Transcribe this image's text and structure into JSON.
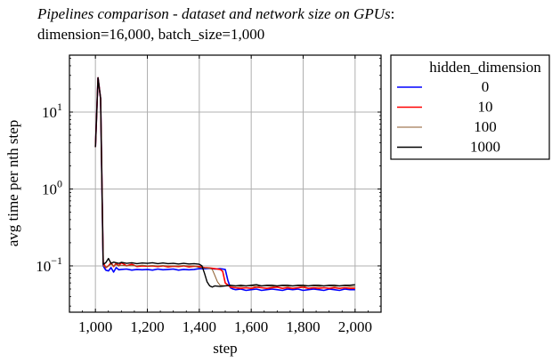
{
  "chart_data": {
    "type": "line",
    "title_italic": "Pipelines comparison - dataset and network size on GPUs",
    "title_colon": ":",
    "subtitle": "dimension=16,000, batch_size=1,000",
    "xlabel": "step",
    "ylabel": "avg time per nth step",
    "xlim": [
      900,
      2100
    ],
    "ylim": [
      0.025,
      55
    ],
    "yscale": "log",
    "grid": true,
    "x_ticks": [
      1000,
      1200,
      1400,
      1600,
      1800,
      2000
    ],
    "x_tick_labels": [
      "1,000",
      "1,200",
      "1,400",
      "1,600",
      "1,800",
      "2,000"
    ],
    "y_ticks": [
      0.1,
      1,
      10
    ],
    "y_tick_base": "10",
    "y_tick_exponents": [
      "−1",
      "0",
      "1"
    ],
    "legend": {
      "title": "hidden_dimension",
      "placement": "outside-top-right",
      "entries": [
        "0",
        "10",
        "100",
        "1000"
      ]
    },
    "series": [
      {
        "name": "0",
        "color": "#0000ff",
        "x": [
          1000,
          1010,
          1020,
          1030,
          1040,
          1050,
          1060,
          1070,
          1080,
          1090,
          1100,
          1120,
          1140,
          1160,
          1180,
          1200,
          1220,
          1240,
          1260,
          1280,
          1300,
          1320,
          1340,
          1360,
          1380,
          1400,
          1420,
          1440,
          1460,
          1480,
          1500,
          1510,
          1520,
          1530,
          1540,
          1560,
          1580,
          1600,
          1620,
          1640,
          1660,
          1680,
          1700,
          1720,
          1740,
          1760,
          1780,
          1800,
          1820,
          1840,
          1860,
          1880,
          1900,
          1920,
          1940,
          1960,
          1980,
          2000
        ],
        "y": [
          3.5,
          28,
          15,
          0.1,
          0.088,
          0.086,
          0.095,
          0.083,
          0.095,
          0.089,
          0.09,
          0.091,
          0.088,
          0.09,
          0.089,
          0.09,
          0.088,
          0.091,
          0.089,
          0.09,
          0.091,
          0.088,
          0.09,
          0.089,
          0.09,
          0.092,
          0.092,
          0.093,
          0.091,
          0.092,
          0.09,
          0.065,
          0.052,
          0.05,
          0.049,
          0.05,
          0.048,
          0.049,
          0.05,
          0.048,
          0.049,
          0.05,
          0.049,
          0.048,
          0.05,
          0.049,
          0.05,
          0.048,
          0.049,
          0.05,
          0.049,
          0.048,
          0.05,
          0.049,
          0.048,
          0.05,
          0.049,
          0.049
        ]
      },
      {
        "name": "10",
        "color": "#ff0000",
        "x": [
          1000,
          1010,
          1020,
          1030,
          1040,
          1050,
          1060,
          1070,
          1080,
          1090,
          1100,
          1120,
          1140,
          1160,
          1180,
          1200,
          1220,
          1240,
          1260,
          1280,
          1300,
          1320,
          1340,
          1360,
          1380,
          1400,
          1420,
          1440,
          1460,
          1480,
          1490,
          1500,
          1520,
          1540,
          1560,
          1580,
          1600,
          1620,
          1640,
          1660,
          1680,
          1700,
          1720,
          1740,
          1760,
          1780,
          1800,
          1820,
          1840,
          1860,
          1880,
          1900,
          1920,
          1940,
          1960,
          1980,
          2000
        ],
        "y": [
          3.5,
          28,
          15,
          0.11,
          0.095,
          0.1,
          0.11,
          0.098,
          0.108,
          0.1,
          0.11,
          0.1,
          0.105,
          0.098,
          0.1,
          0.099,
          0.1,
          0.098,
          0.1,
          0.097,
          0.099,
          0.098,
          0.1,
          0.097,
          0.099,
          0.098,
          0.095,
          0.094,
          0.092,
          0.09,
          0.085,
          0.06,
          0.053,
          0.052,
          0.051,
          0.052,
          0.051,
          0.053,
          0.052,
          0.051,
          0.052,
          0.053,
          0.051,
          0.052,
          0.051,
          0.052,
          0.053,
          0.051,
          0.052,
          0.051,
          0.052,
          0.051,
          0.052,
          0.051,
          0.052,
          0.051,
          0.051
        ]
      },
      {
        "name": "100",
        "color": "#8b5a2b",
        "x": [
          1000,
          1010,
          1020,
          1030,
          1040,
          1050,
          1060,
          1070,
          1080,
          1090,
          1100,
          1120,
          1140,
          1160,
          1180,
          1200,
          1220,
          1240,
          1260,
          1280,
          1300,
          1320,
          1340,
          1360,
          1380,
          1400,
          1420,
          1440,
          1450,
          1460,
          1470,
          1480,
          1500,
          1520,
          1540,
          1560,
          1580,
          1600,
          1620,
          1640,
          1660,
          1680,
          1700,
          1720,
          1740,
          1760,
          1780,
          1800,
          1820,
          1840,
          1860,
          1880,
          1900,
          1920,
          1940,
          1960,
          1980,
          2000
        ],
        "y": [
          3.5,
          28,
          15,
          0.1,
          0.096,
          0.1,
          0.105,
          0.1,
          0.104,
          0.1,
          0.102,
          0.1,
          0.101,
          0.1,
          0.102,
          0.1,
          0.101,
          0.1,
          0.101,
          0.1,
          0.1,
          0.1,
          0.101,
          0.1,
          0.1,
          0.095,
          0.094,
          0.093,
          0.09,
          0.075,
          0.062,
          0.056,
          0.055,
          0.055,
          0.055,
          0.054,
          0.055,
          0.055,
          0.054,
          0.055,
          0.055,
          0.054,
          0.055,
          0.055,
          0.054,
          0.055,
          0.055,
          0.054,
          0.055,
          0.055,
          0.054,
          0.055,
          0.055,
          0.054,
          0.055,
          0.055,
          0.054,
          0.054
        ]
      },
      {
        "name": "1000",
        "color": "#000000",
        "x": [
          1000,
          1010,
          1020,
          1030,
          1040,
          1050,
          1060,
          1070,
          1080,
          1090,
          1100,
          1120,
          1140,
          1160,
          1180,
          1200,
          1220,
          1240,
          1260,
          1280,
          1300,
          1320,
          1340,
          1360,
          1380,
          1400,
          1410,
          1420,
          1430,
          1440,
          1450,
          1460,
          1480,
          1500,
          1520,
          1540,
          1560,
          1580,
          1600,
          1620,
          1640,
          1660,
          1680,
          1700,
          1720,
          1740,
          1760,
          1780,
          1800,
          1820,
          1840,
          1860,
          1880,
          1900,
          1920,
          1940,
          1960,
          1980,
          2000
        ],
        "y": [
          3.5,
          28,
          15,
          0.105,
          0.11,
          0.125,
          0.108,
          0.112,
          0.11,
          0.108,
          0.111,
          0.108,
          0.11,
          0.107,
          0.109,
          0.108,
          0.11,
          0.107,
          0.109,
          0.107,
          0.108,
          0.106,
          0.108,
          0.106,
          0.107,
          0.105,
          0.1,
          0.08,
          0.062,
          0.055,
          0.053,
          0.055,
          0.054,
          0.055,
          0.056,
          0.055,
          0.056,
          0.055,
          0.056,
          0.057,
          0.055,
          0.056,
          0.056,
          0.055,
          0.056,
          0.056,
          0.055,
          0.056,
          0.056,
          0.055,
          0.056,
          0.056,
          0.055,
          0.056,
          0.056,
          0.055,
          0.056,
          0.056,
          0.057
        ]
      }
    ]
  }
}
